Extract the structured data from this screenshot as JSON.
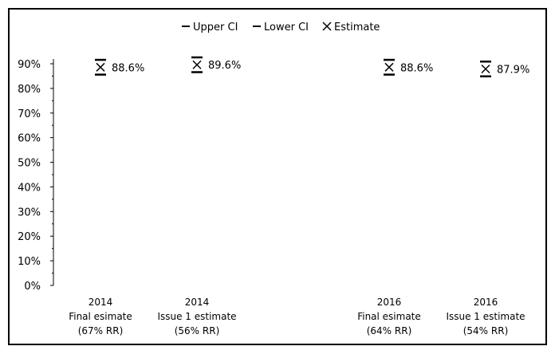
{
  "chart_data": {
    "type": "scatter",
    "title": "",
    "xlabel": "",
    "ylabel": "",
    "ylim": [
      0,
      90
    ],
    "y_ticks": [
      "0%",
      "10%",
      "20%",
      "30%",
      "40%",
      "50%",
      "60%",
      "70%",
      "80%",
      "90%"
    ],
    "grid": false,
    "legend_position": "top-center",
    "legend": [
      {
        "symbol": "dash",
        "label": "Upper CI"
      },
      {
        "symbol": "dash",
        "label": "Lower CI"
      },
      {
        "symbol": "x",
        "label": "Estimate"
      }
    ],
    "categories": [
      {
        "lines": [
          "2014",
          "Final esimate",
          "(67% RR)"
        ]
      },
      {
        "lines": [
          "2014",
          "Issue 1 estimate",
          "(56% RR)"
        ]
      },
      {
        "lines": [
          "2016",
          "Final esimate",
          "(64% RR)"
        ]
      },
      {
        "lines": [
          "2016",
          "Issue 1 estimate",
          "(54% RR)"
        ]
      }
    ],
    "series": [
      {
        "name": "Upper CI",
        "values": [
          91.6,
          92.6,
          91.6,
          90.9
        ]
      },
      {
        "name": "Lower CI",
        "values": [
          85.6,
          86.6,
          85.6,
          84.9
        ]
      },
      {
        "name": "Estimate",
        "values": [
          88.6,
          89.6,
          88.6,
          87.9
        ]
      }
    ],
    "data_labels": [
      "88.6%",
      "89.6%",
      "88.6%",
      "87.9%"
    ]
  }
}
